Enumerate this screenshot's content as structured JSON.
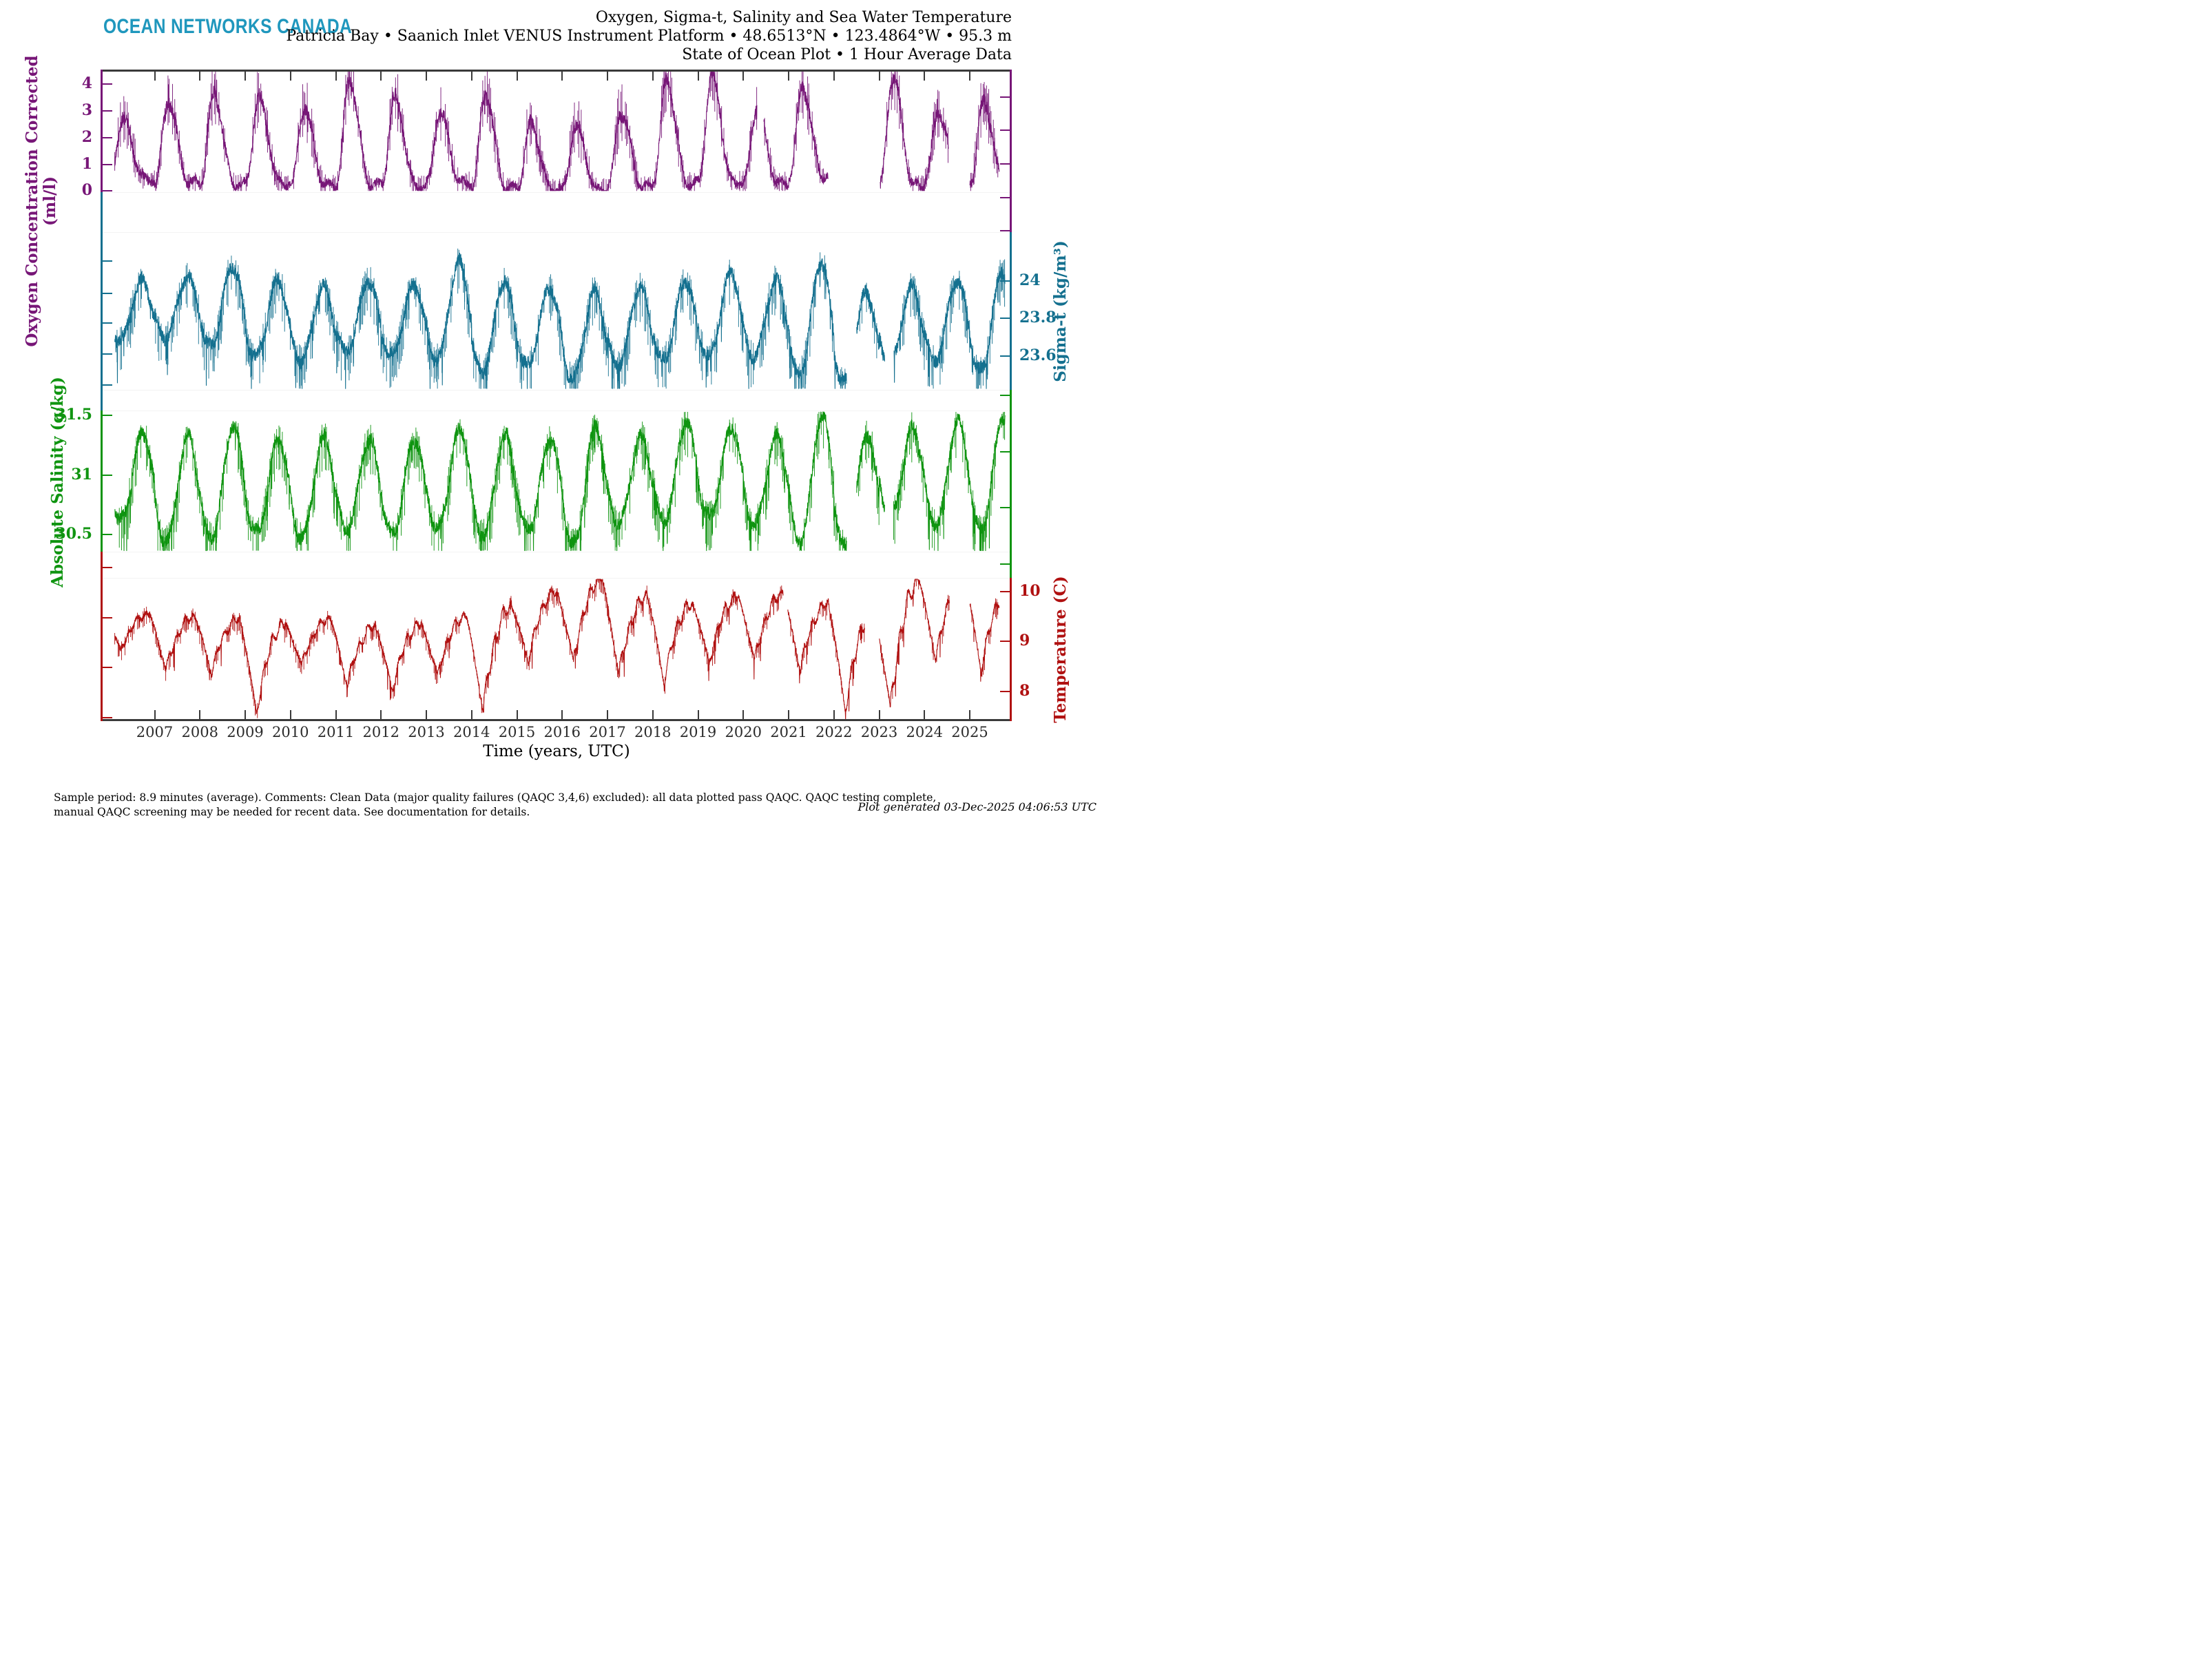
{
  "header": {
    "logo": "OCEAN NETWORKS CANADA",
    "title_line1": "Oxygen, Sigma-t, Salinity and Sea Water Temperature",
    "title_line2": "Patricia Bay • Saanich Inlet VENUS Instrument Platform • 48.6513°N • 123.4864°W • 95.3 m",
    "title_line3": "State of Ocean Plot • 1 Hour Average Data"
  },
  "footer": {
    "caption_line1": "Sample period: 8.9 minutes (average). Comments: Clean Data (major quality failures (QAQC 3,4,6) excluded): all data plotted pass QAQC. QAQC testing complete,",
    "caption_line2": "manual QAQC screening may be needed for recent data. See documentation for details.",
    "generated": "Plot generated 03-Dec-2025 04:06:53 UTC"
  },
  "colors": {
    "logo": "#1f97bd",
    "frame": "#3a3a3a",
    "x_tick_text": "#2b2b2b",
    "oxygen": "#771677",
    "sigma_t": "#14708f",
    "salinity": "#0f9410",
    "temperature": "#b01111"
  },
  "chart_data": {
    "type": "line",
    "title": "Oxygen, Sigma-t, Salinity and Sea Water Temperature",
    "x": {
      "label": "Time (years, UTC)",
      "tick_years": [
        2007,
        2008,
        2009,
        2010,
        2011,
        2012,
        2013,
        2014,
        2015,
        2016,
        2017,
        2018,
        2019,
        2020,
        2021,
        2022,
        2023,
        2024,
        2025
      ],
      "range": [
        2005.83,
        2026.05
      ]
    },
    "grid": false,
    "legend": "none",
    "panels": [
      {
        "id": "oxygen",
        "axis_label": "Oxygen Concentration Corrected",
        "axis_unit": "(ml/l)",
        "side": "left",
        "color": "#771677",
        "tick_values": [
          0,
          1,
          2,
          3,
          4
        ],
        "tick_labels": [
          "0",
          "1",
          "2",
          "3",
          "4"
        ],
        "axis_range": [
          -0.04,
          4.54
        ],
        "shape": "oxygen",
        "phase_peak": 0.3,
        "phase_trough": 0.8,
        "years": [
          2006,
          2007,
          2008,
          2009,
          2010,
          2011,
          2012,
          2013,
          2014,
          2015,
          2016,
          2017,
          2018,
          2019,
          2020,
          2021,
          2022,
          2023,
          2024,
          2025
        ],
        "annual_peak": [
          2.7,
          3.4,
          3.65,
          3.5,
          3.1,
          4.15,
          3.5,
          2.9,
          3.6,
          2.5,
          2.45,
          2.95,
          4.15,
          4.35,
          3.1,
          3.85,
          3.0,
          4.3,
          2.9,
          3.3
        ],
        "annual_trough": [
          0.45,
          0.3,
          0.25,
          0.3,
          0.2,
          0.25,
          0.2,
          0.3,
          0.1,
          0.05,
          0.05,
          0.15,
          0.3,
          0.35,
          0.3,
          0.55,
          0.4,
          0.2,
          0.45,
          0.3
        ],
        "gaps": [
          [
            2020.3,
            2020.45
          ],
          [
            2021.87,
            2023.02
          ],
          [
            2024.53,
            2025.0
          ]
        ],
        "t_start": 2006.12,
        "t_end": 2025.65,
        "noise": 0.27,
        "spike_prob": 0.06,
        "spike_mag": 0.55,
        "spike_dir": 0
      },
      {
        "id": "sigma_t",
        "axis_label": "Sigma-t (kg/m³)",
        "axis_unit": "",
        "side": "right",
        "color": "#14708f",
        "tick_values": [
          23.6,
          23.8,
          24
        ],
        "tick_labels": [
          "23.6",
          "23.8",
          "24"
        ],
        "axis_range": [
          23.417,
          24.257
        ],
        "shape": "humped",
        "phase_peak": 0.72,
        "phase_trough": 0.22,
        "years": [
          2006,
          2007,
          2008,
          2009,
          2010,
          2011,
          2012,
          2013,
          2014,
          2015,
          2016,
          2017,
          2018,
          2019,
          2020,
          2021,
          2022,
          2023,
          2024,
          2025
        ],
        "annual_peak": [
          24.0,
          24.02,
          24.08,
          24.0,
          23.97,
          24.0,
          23.98,
          24.1,
          24.0,
          23.96,
          23.95,
          23.96,
          24.0,
          24.04,
          24.0,
          24.1,
          23.94,
          23.97,
          24.0,
          24.05
        ],
        "annual_trough": [
          23.68,
          23.7,
          23.65,
          23.6,
          23.58,
          23.62,
          23.6,
          23.58,
          23.52,
          23.55,
          23.48,
          23.55,
          23.58,
          23.6,
          23.6,
          23.5,
          23.46,
          23.55,
          23.58,
          23.52
        ],
        "gaps": [
          [
            2022.28,
            2022.5
          ],
          [
            2023.12,
            2023.32
          ]
        ],
        "t_start": 2006.12,
        "t_end": 2025.78,
        "noise": 0.035,
        "spike_prob": 0.05,
        "spike_mag": 0.1,
        "spike_dir": -1
      },
      {
        "id": "salinity",
        "axis_label": "Absolute Salinity (g/kg)",
        "axis_unit": "",
        "side": "left",
        "color": "#0f9410",
        "tick_values": [
          30.5,
          31,
          31.5
        ],
        "tick_labels": [
          "30.5",
          "31",
          "31.5"
        ],
        "axis_range": [
          30.355,
          31.543
        ],
        "shape": "humped",
        "phase_peak": 0.74,
        "phase_trough": 0.17,
        "years": [
          2006,
          2007,
          2008,
          2009,
          2010,
          2011,
          2012,
          2013,
          2014,
          2015,
          2016,
          2017,
          2018,
          2019,
          2020,
          2021,
          2022,
          2023,
          2024,
          2025
        ],
        "annual_peak": [
          31.35,
          31.33,
          31.42,
          31.3,
          31.32,
          31.3,
          31.3,
          31.38,
          31.33,
          31.3,
          31.42,
          31.33,
          31.45,
          31.4,
          31.33,
          31.5,
          31.35,
          31.4,
          31.45,
          31.5
        ],
        "annual_trough": [
          30.62,
          30.45,
          30.48,
          30.52,
          30.48,
          30.56,
          30.52,
          30.56,
          30.5,
          30.55,
          30.42,
          30.6,
          30.62,
          30.65,
          30.6,
          30.45,
          30.4,
          30.65,
          30.6,
          30.55
        ],
        "gaps": [
          [
            2022.28,
            2022.5
          ],
          [
            2023.12,
            2023.32
          ]
        ],
        "t_start": 2006.12,
        "t_end": 2025.78,
        "noise": 0.055,
        "spike_prob": 0.05,
        "spike_mag": 0.18,
        "spike_dir": -1
      },
      {
        "id": "temperature",
        "axis_label": "Temperature (C)",
        "axis_unit": "",
        "side": "right",
        "color": "#b01111",
        "tick_values": [
          8,
          9,
          10
        ],
        "tick_labels": [
          "8",
          "9",
          "10"
        ],
        "axis_range": [
          7.407,
          10.269
        ],
        "shape": "sawtooth",
        "phase_peak": 0.88,
        "phase_trough": 0.25,
        "years": [
          2006,
          2007,
          2008,
          2009,
          2010,
          2011,
          2012,
          2013,
          2014,
          2015,
          2016,
          2017,
          2018,
          2019,
          2020,
          2021,
          2022,
          2023,
          2024,
          2025
        ],
        "annual_peak": [
          9.55,
          9.5,
          9.45,
          9.35,
          9.45,
          9.3,
          9.35,
          9.5,
          9.7,
          10.0,
          10.25,
          9.9,
          9.75,
          9.9,
          9.95,
          9.75,
          9.6,
          10.2,
          10.3,
          10.05
        ],
        "annual_trough": [
          8.8,
          8.4,
          8.35,
          7.55,
          8.5,
          8.1,
          8.0,
          8.3,
          7.6,
          8.6,
          8.6,
          8.3,
          8.15,
          8.55,
          8.6,
          8.4,
          7.6,
          7.65,
          8.6,
          8.4
        ],
        "gaps": [
          [
            2020.88,
            2020.98
          ],
          [
            2022.68,
            2023.0
          ],
          [
            2024.55,
            2025.0
          ]
        ],
        "t_start": 2006.12,
        "t_end": 2025.65,
        "noise": 0.05,
        "spike_prob": 0.04,
        "spike_mag": 0.22,
        "spike_dir": -1
      }
    ]
  }
}
